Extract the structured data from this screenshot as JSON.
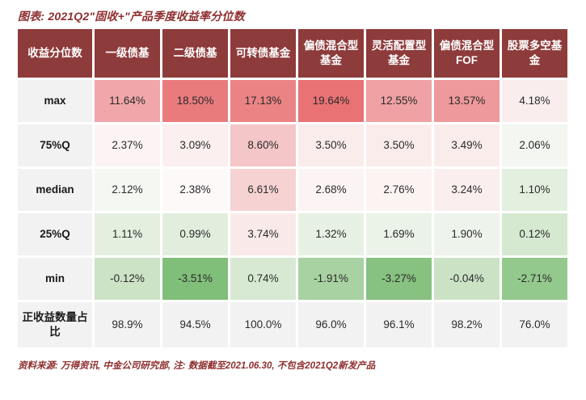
{
  "figure": {
    "title": "图表:  2021Q2\"固收+\"产品季度收益率分位数",
    "source_note": "资料来源: 万得资讯, 中金公司研究部, 注: 数据截至2021.06.30, 不包含2021Q2新发产品"
  },
  "colors": {
    "header_bg": "#8e3b3b",
    "header_text": "#ffffff",
    "label_bg": "#f2f2f2",
    "title_text": "#8e2f2f",
    "page_bg": "#ffffff"
  },
  "table": {
    "headers": [
      "收益分位数",
      "一级债基",
      "二级债基",
      "可转债基金",
      "偏债混合型基金",
      "灵活配置型基金",
      "偏债混合型FOF",
      "股票多空基金"
    ],
    "rows": [
      {
        "label": "max",
        "values": [
          "11.64%",
          "18.50%",
          "17.13%",
          "19.64%",
          "12.55%",
          "13.57%",
          "4.18%"
        ],
        "colors": [
          "#f1a7a9",
          "#ea7b7d",
          "#eb8385",
          "#e87274",
          "#f0a1a3",
          "#ee999b",
          "#f9edee"
        ]
      },
      {
        "label": "75%Q",
        "values": [
          "2.37%",
          "3.09%",
          "8.60%",
          "3.50%",
          "3.50%",
          "3.49%",
          "2.06%"
        ],
        "colors": [
          "#fcf4f4",
          "#fbefef",
          "#f4c6c7",
          "#fbecec",
          "#fbecec",
          "#fbecec",
          "#f3f6f1"
        ]
      },
      {
        "label": "median",
        "values": [
          "2.12%",
          "2.38%",
          "6.61%",
          "2.68%",
          "2.76%",
          "3.24%",
          "1.10%"
        ],
        "colors": [
          "#f5f7f3",
          "#fdf9f9",
          "#f6d2d3",
          "#fcf4f4",
          "#fcf3f3",
          "#fbeeee",
          "#e3efdf"
        ]
      },
      {
        "label": "25%Q",
        "values": [
          "1.11%",
          "0.99%",
          "3.74%",
          "1.32%",
          "1.69%",
          "1.90%",
          "0.12%"
        ],
        "colors": [
          "#e3efdf",
          "#e1eedd",
          "#fae9e9",
          "#e7f1e3",
          "#ebf3e8",
          "#eef4eb",
          "#d5e8d0"
        ]
      },
      {
        "label": "min",
        "values": [
          "-0.12%",
          "-3.51%",
          "0.74%",
          "-1.91%",
          "-3.27%",
          "-0.04%",
          "-2.71%"
        ],
        "colors": [
          "#cce3c6",
          "#80bf79",
          "#d7e9d2",
          "#a8d2a1",
          "#87c280",
          "#cbe2c5",
          "#93c98c"
        ]
      },
      {
        "label": "正收益数量占比",
        "values": [
          "98.9%",
          "94.5%",
          "100.0%",
          "96.0%",
          "96.1%",
          "98.2%",
          "76.0%"
        ],
        "colors": [
          "#f2f2f2",
          "#f2f2f2",
          "#f2f2f2",
          "#f2f2f2",
          "#f2f2f2",
          "#f2f2f2",
          "#f2f2f2"
        ]
      }
    ]
  },
  "chart_data": {
    "type": "heatmap",
    "title": "2021Q2\"固收+\"产品季度收益率分位数",
    "columns": [
      "一级债基",
      "二级债基",
      "可转债基金",
      "偏债混合型基金",
      "灵活配置型基金",
      "偏债混合型FOF",
      "股票多空基金"
    ],
    "rows": [
      "max",
      "75%Q",
      "median",
      "25%Q",
      "min",
      "正收益数量占比"
    ],
    "values_pct": [
      [
        11.64,
        18.5,
        17.13,
        19.64,
        12.55,
        13.57,
        4.18
      ],
      [
        2.37,
        3.09,
        8.6,
        3.5,
        3.5,
        3.49,
        2.06
      ],
      [
        2.12,
        2.38,
        6.61,
        2.68,
        2.76,
        3.24,
        1.1
      ],
      [
        1.11,
        0.99,
        3.74,
        1.32,
        1.69,
        1.9,
        0.12
      ],
      [
        -0.12,
        -3.51,
        0.74,
        -1.91,
        -3.27,
        -0.04,
        -2.71
      ],
      [
        98.9,
        94.5,
        100.0,
        96.0,
        96.1,
        98.2,
        76.0
      ]
    ],
    "color_scale": "red = high return, white ≈ 2%, green = low/negative; bottom share-of-positive row neutral gray",
    "legend_position": "none",
    "grid": false
  }
}
